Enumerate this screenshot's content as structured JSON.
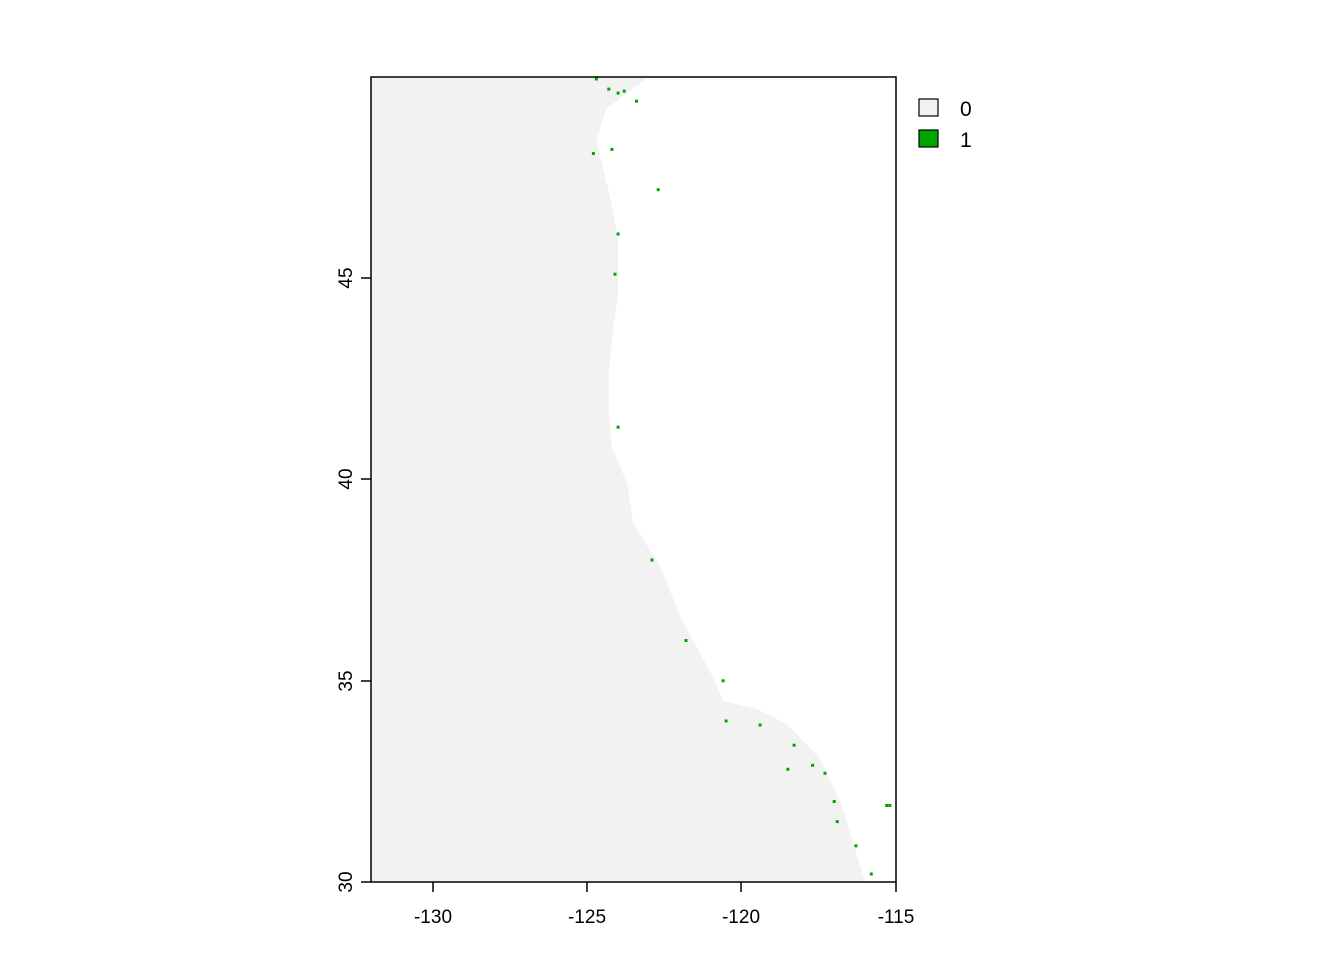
{
  "chart_data": {
    "type": "heatmap",
    "title": "",
    "xlabel": "",
    "ylabel": "",
    "xlim": [
      -132,
      -115
    ],
    "ylim": [
      30,
      50
    ],
    "x_ticks": [
      "-130",
      "-125",
      "-120",
      "-115"
    ],
    "x_tick_values": [
      -130,
      -125,
      -120,
      -115
    ],
    "y_ticks": [
      "30",
      "35",
      "40",
      "45"
    ],
    "y_tick_values": [
      30,
      35,
      40,
      45
    ],
    "legend_placement": "top-right",
    "legend": [
      {
        "label": "0",
        "value": 0,
        "color": "#f2f2f2"
      },
      {
        "label": "1",
        "value": 1,
        "color": "#00a600"
      }
    ],
    "background_color": "#ffffff",
    "coastline": [
      [
        -123.0,
        50
      ],
      [
        -124.4,
        49.2
      ],
      [
        -124.7,
        48.4
      ],
      [
        -124.5,
        47.8
      ],
      [
        -124.2,
        46.8
      ],
      [
        -124.0,
        46.0
      ],
      [
        -124.0,
        44.6
      ],
      [
        -124.2,
        43.5
      ],
      [
        -124.3,
        42.6
      ],
      [
        -124.3,
        41.7
      ],
      [
        -124.2,
        40.8
      ],
      [
        -123.7,
        39.9
      ],
      [
        -123.5,
        38.9
      ],
      [
        -122.6,
        37.8
      ],
      [
        -122.0,
        36.6
      ],
      [
        -121.0,
        35.2
      ],
      [
        -120.6,
        34.5
      ],
      [
        -119.5,
        34.3
      ],
      [
        -118.5,
        33.9
      ],
      [
        -117.5,
        33.1
      ],
      [
        -116.8,
        32.0
      ],
      [
        -116.4,
        31.0
      ],
      [
        -116.0,
        30.0
      ]
    ],
    "class_1_cells": [
      [
        -124.7,
        49.95
      ],
      [
        -124.3,
        49.7
      ],
      [
        -124.0,
        49.6
      ],
      [
        -123.8,
        49.65
      ],
      [
        -123.4,
        49.4
      ],
      [
        -124.2,
        48.2
      ],
      [
        -124.8,
        48.1
      ],
      [
        -122.7,
        47.2
      ],
      [
        -124.0,
        46.1
      ],
      [
        -124.1,
        45.1
      ],
      [
        -124.0,
        41.3
      ],
      [
        -122.9,
        38.0
      ],
      [
        -121.8,
        36.0
      ],
      [
        -120.6,
        35.0
      ],
      [
        -120.5,
        34.0
      ],
      [
        -119.4,
        33.9
      ],
      [
        -118.3,
        33.4
      ],
      [
        -117.7,
        32.9
      ],
      [
        -118.5,
        32.8
      ],
      [
        -117.3,
        32.7
      ],
      [
        -117.0,
        32.0
      ],
      [
        -116.9,
        31.5
      ],
      [
        -116.3,
        30.9
      ],
      [
        -115.8,
        30.2
      ],
      [
        -115.2,
        31.9
      ],
      [
        -115.3,
        31.9
      ]
    ]
  }
}
